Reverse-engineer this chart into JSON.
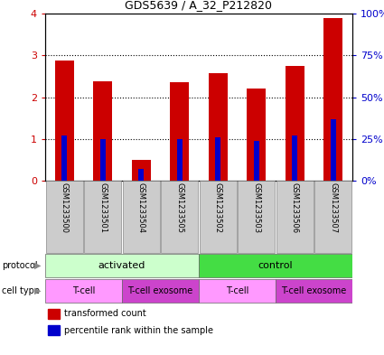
{
  "title": "GDS5639 / A_32_P212820",
  "samples": [
    "GSM1233500",
    "GSM1233501",
    "GSM1233504",
    "GSM1233505",
    "GSM1233502",
    "GSM1233503",
    "GSM1233506",
    "GSM1233507"
  ],
  "transformed_counts": [
    2.88,
    2.38,
    0.5,
    2.35,
    2.58,
    2.2,
    2.75,
    3.9
  ],
  "percentile_ranks_pct": [
    27,
    25,
    7,
    25,
    26,
    24,
    27,
    37
  ],
  "ylim_left": [
    0,
    4
  ],
  "ylim_right": [
    0,
    100
  ],
  "yticks_left": [
    0,
    1,
    2,
    3,
    4
  ],
  "ytick_labels_left": [
    "0",
    "1",
    "2",
    "3",
    "4"
  ],
  "yticks_right": [
    0,
    25,
    50,
    75,
    100
  ],
  "ytick_labels_right": [
    "0%",
    "25%",
    "50%",
    "75%",
    "100%"
  ],
  "bar_color": "#cc0000",
  "percentile_color": "#0000cc",
  "bar_width": 0.5,
  "percentile_bar_width": 0.15,
  "protocol_groups": [
    {
      "label": "activated",
      "start": 0,
      "end": 4,
      "color": "#ccffcc"
    },
    {
      "label": "control",
      "start": 4,
      "end": 8,
      "color": "#44dd44"
    }
  ],
  "cell_type_groups": [
    {
      "label": "T-cell",
      "start": 0,
      "end": 2,
      "color": "#ff99ff"
    },
    {
      "label": "T-cell exosome",
      "start": 2,
      "end": 4,
      "color": "#cc44cc"
    },
    {
      "label": "T-cell",
      "start": 4,
      "end": 6,
      "color": "#ff99ff"
    },
    {
      "label": "T-cell exosome",
      "start": 6,
      "end": 8,
      "color": "#cc44cc"
    }
  ],
  "left_color": "#cc0000",
  "right_color": "#0000cc",
  "tick_label_bg": "#cccccc",
  "fig_width": 4.25,
  "fig_height": 3.93,
  "dpi": 100
}
